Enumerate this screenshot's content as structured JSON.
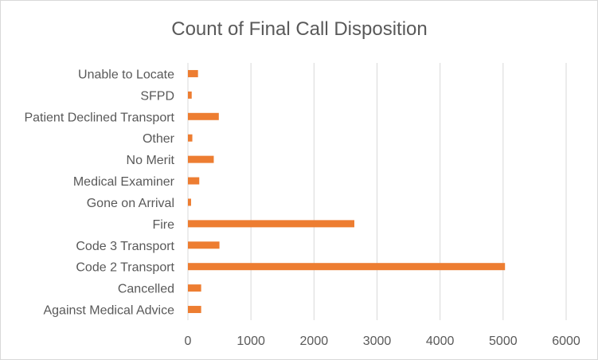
{
  "chart_data": {
    "type": "bar",
    "orientation": "horizontal",
    "title": "Count of Final Call Disposition",
    "categories": [
      "Unable to Locate",
      "SFPD",
      "Patient Declined Transport",
      "Other",
      "No Merit",
      "Medical Examiner",
      "Gone on Arrival",
      "Fire",
      "Code 3 Transport",
      "Code 2 Transport",
      "Cancelled",
      "Against Medical Advice"
    ],
    "values": [
      160,
      60,
      490,
      70,
      410,
      180,
      50,
      2640,
      500,
      5030,
      210,
      210
    ],
    "xlim": [
      0,
      6000
    ],
    "xticks": [
      0,
      1000,
      2000,
      3000,
      4000,
      5000,
      6000
    ],
    "xlabel": "",
    "ylabel": "",
    "grid": "vertical",
    "legend": "none",
    "bar_color": "#ed7d31",
    "grid_color": "#d9d9d9"
  }
}
